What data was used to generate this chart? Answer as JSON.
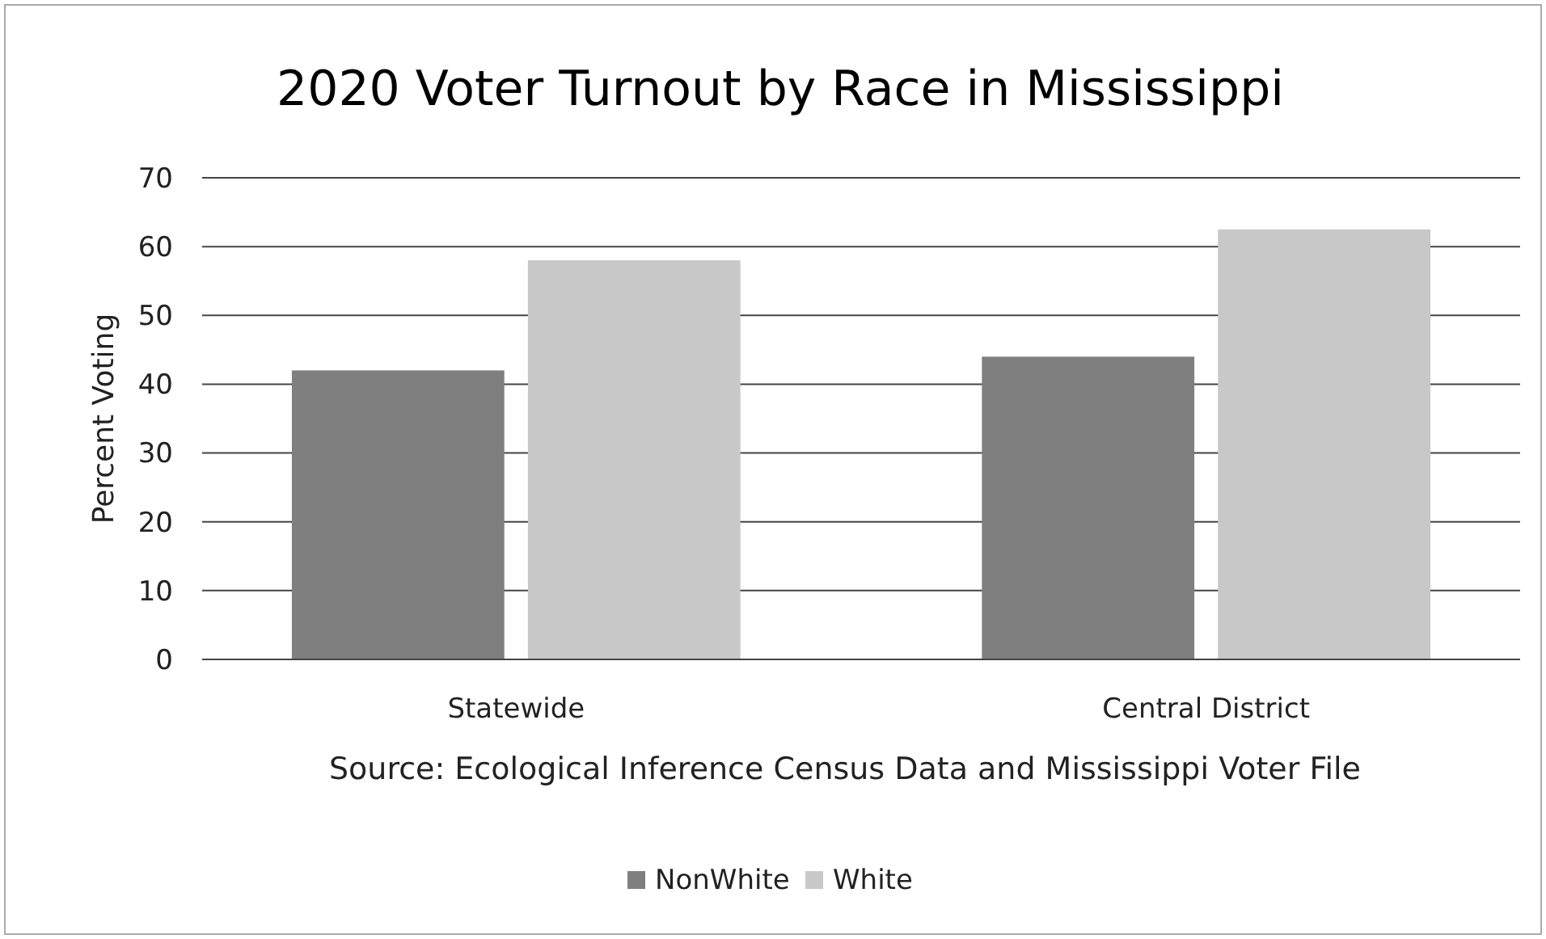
{
  "chart_data": {
    "type": "bar",
    "title": "2020 Voter Turnout by Race in Mississippi",
    "ylabel": "Percent Voting",
    "categories": [
      "Statewide",
      "Central District"
    ],
    "series": [
      {
        "name": "NonWhite",
        "color": "#7f7f7f",
        "values": [
          42,
          44
        ]
      },
      {
        "name": "White",
        "color": "#c8c8c8",
        "values": [
          58,
          62.5
        ]
      }
    ],
    "ylim": [
      0,
      70
    ],
    "yticks": [
      0,
      10,
      20,
      30,
      40,
      50,
      60,
      70
    ],
    "grid": "y",
    "legend": "bottom",
    "annotations": [
      "Source: Ecological Inference Census Data and Mississippi Voter File"
    ]
  }
}
